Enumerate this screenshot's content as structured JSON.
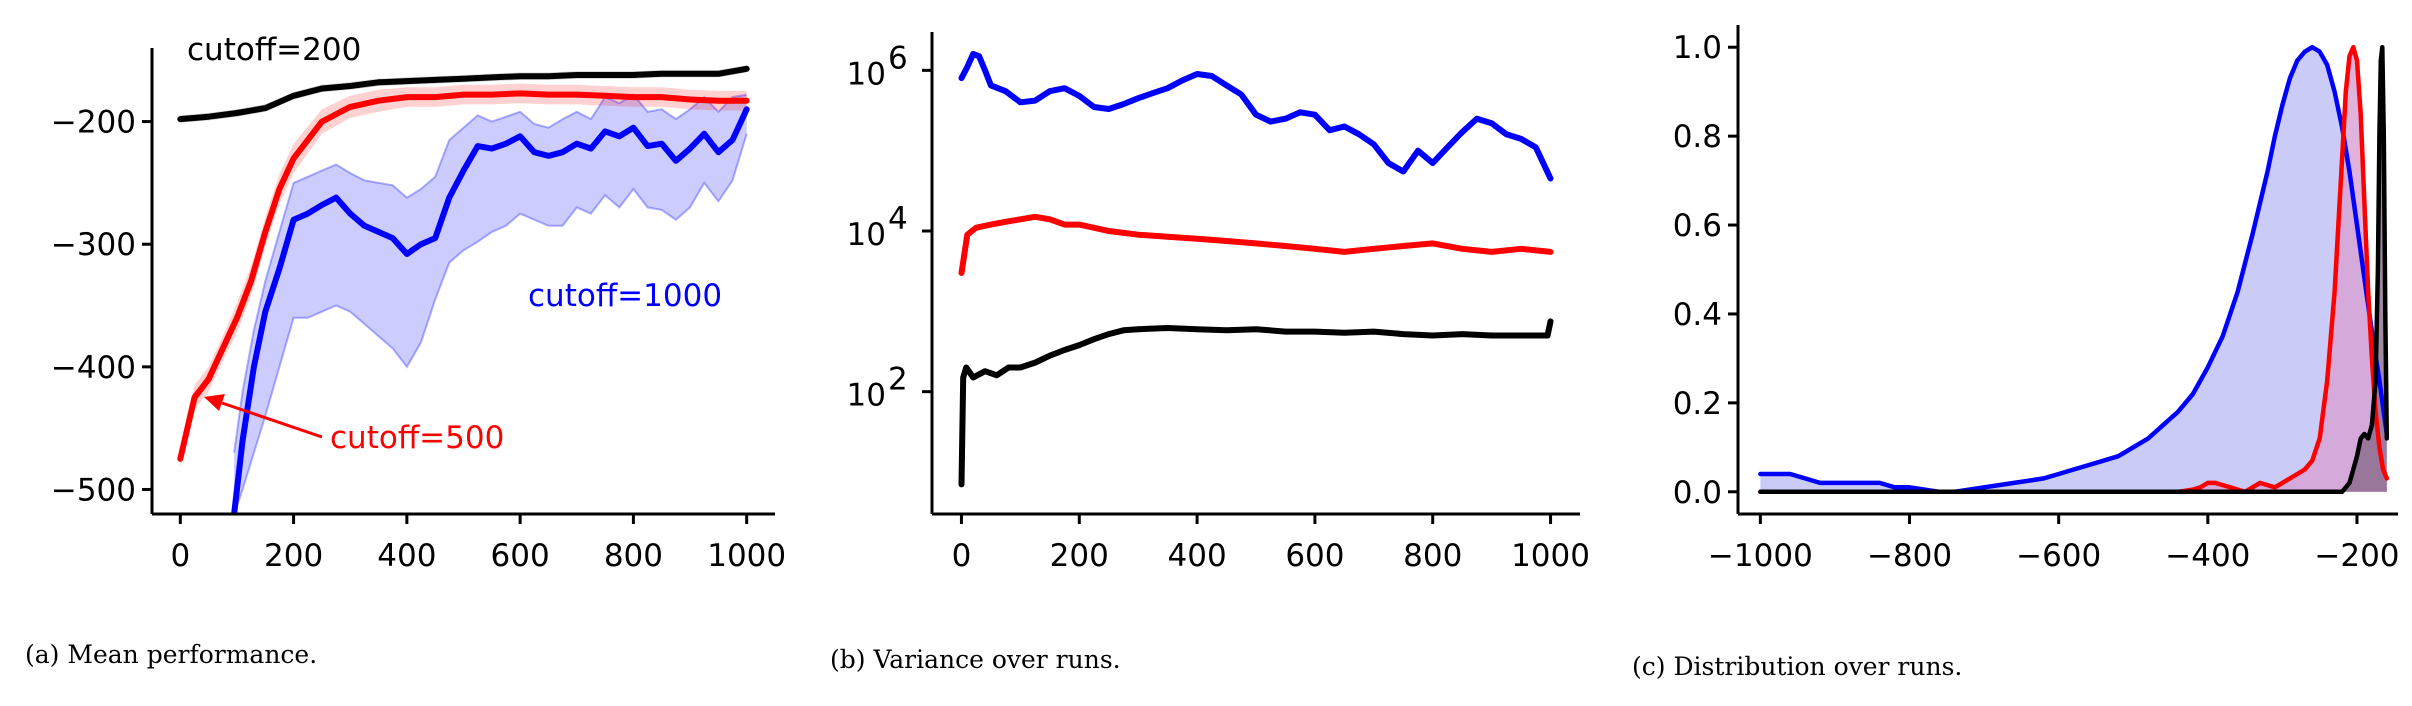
{
  "chart_data": [
    {
      "type": "line",
      "caption": "(a) Mean performance.",
      "xlim": [
        -50,
        1050
      ],
      "ylim": [
        -520,
        -140
      ],
      "xticks": [
        0,
        200,
        400,
        600,
        800,
        1000
      ],
      "xtick_labels": [
        "0",
        "200",
        "400",
        "600",
        "800",
        "1000"
      ],
      "yticks": [
        -500,
        -400,
        -300,
        -200
      ],
      "ytick_labels": [
        "−500",
        "−400",
        "−300",
        "−200"
      ],
      "colors": {
        "cutoff_200": "#000000",
        "cutoff_500": "#ff0000",
        "cutoff_1000": "#0000ff"
      },
      "annotations": {
        "cutoff_200": "cutoff=200",
        "cutoff_500": "cutoff=500",
        "cutoff_1000": "cutoff=1000"
      },
      "series": [
        {
          "key": "cutoff_200",
          "x": [
            0,
            50,
            100,
            150,
            200,
            250,
            300,
            350,
            400,
            450,
            500,
            550,
            600,
            650,
            700,
            750,
            800,
            850,
            900,
            950,
            1000
          ],
          "y": [
            -198,
            -196,
            -193,
            -189,
            -179,
            -173,
            -171,
            -168,
            -167,
            -166,
            -165,
            -164,
            -163,
            -163,
            -162,
            -162,
            -162,
            -161,
            -161,
            -161,
            -157
          ],
          "band": [
            3,
            3,
            3,
            3,
            3,
            3,
            3,
            3,
            3,
            3,
            3,
            3,
            3,
            3,
            3,
            3,
            3,
            3,
            3,
            3,
            3
          ]
        },
        {
          "key": "cutoff_500",
          "x": [
            0,
            25,
            50,
            75,
            100,
            125,
            150,
            175,
            200,
            250,
            300,
            350,
            400,
            450,
            500,
            550,
            600,
            650,
            700,
            750,
            800,
            850,
            900,
            950,
            1000
          ],
          "y": [
            -475,
            -425,
            -410,
            -385,
            -360,
            -330,
            -290,
            -255,
            -230,
            -200,
            -188,
            -183,
            -180,
            -180,
            -178,
            -178,
            -177,
            -178,
            -178,
            -179,
            -180,
            -180,
            -182,
            -183,
            -183
          ],
          "band": [
            8,
            10,
            10,
            10,
            12,
            12,
            12,
            12,
            12,
            10,
            9,
            9,
            8,
            8,
            8,
            8,
            8,
            8,
            8,
            8,
            8,
            8,
            8,
            8,
            8
          ]
        },
        {
          "key": "cutoff_1000",
          "x": [
            95,
            110,
            130,
            150,
            175,
            200,
            225,
            250,
            275,
            300,
            325,
            350,
            375,
            400,
            425,
            450,
            475,
            500,
            525,
            550,
            575,
            600,
            625,
            650,
            675,
            700,
            725,
            750,
            775,
            800,
            825,
            850,
            875,
            900,
            925,
            950,
            975,
            1000
          ],
          "y": [
            -520,
            -460,
            -400,
            -355,
            -320,
            -280,
            -275,
            -268,
            -262,
            -275,
            -285,
            -290,
            -295,
            -308,
            -300,
            -295,
            -262,
            -240,
            -220,
            -222,
            -218,
            -212,
            -225,
            -228,
            -225,
            -218,
            -222,
            -208,
            -212,
            -205,
            -220,
            -218,
            -232,
            -222,
            -210,
            -225,
            -215,
            -190
          ],
          "lower": [
            -520,
            -500,
            -470,
            -440,
            -400,
            -360,
            -360,
            -355,
            -350,
            -355,
            -365,
            -375,
            -385,
            -400,
            -380,
            -345,
            -315,
            -305,
            -298,
            -290,
            -285,
            -275,
            -280,
            -285,
            -285,
            -270,
            -275,
            -260,
            -270,
            -255,
            -270,
            -272,
            -280,
            -270,
            -250,
            -265,
            -248,
            -210
          ],
          "upper": [
            -470,
            -420,
            -370,
            -330,
            -290,
            -250,
            -245,
            -240,
            -235,
            -242,
            -248,
            -250,
            -252,
            -262,
            -255,
            -245,
            -215,
            -205,
            -195,
            -200,
            -196,
            -192,
            -202,
            -205,
            -198,
            -192,
            -198,
            -180,
            -185,
            -178,
            -192,
            -190,
            -198,
            -190,
            -180,
            -192,
            -180,
            -178
          ]
        }
      ]
    },
    {
      "type": "line",
      "caption": "(b) Variance over runs.",
      "yscale": "log",
      "xlim": [
        -50,
        1050
      ],
      "ylim": [
        3,
        3000000
      ],
      "xticks": [
        0,
        200,
        400,
        600,
        800,
        1000
      ],
      "xtick_labels": [
        "0",
        "200",
        "400",
        "600",
        "800",
        "1000"
      ],
      "yticks": [
        100,
        10000,
        1000000
      ],
      "ytick_labels": {
        "base": "10",
        "exponents": [
          "2",
          "4",
          "6"
        ]
      },
      "colors": {
        "cutoff_200": "#000000",
        "cutoff_500": "#ff0000",
        "cutoff_1000": "#0000ff"
      },
      "series": [
        {
          "key": "cutoff_1000",
          "x": [
            0,
            10,
            20,
            30,
            40,
            50,
            75,
            100,
            125,
            150,
            175,
            200,
            225,
            250,
            275,
            300,
            325,
            350,
            375,
            400,
            425,
            450,
            475,
            500,
            525,
            550,
            575,
            600,
            625,
            650,
            675,
            700,
            725,
            750,
            775,
            800,
            825,
            850,
            875,
            900,
            925,
            950,
            975,
            1000
          ],
          "y": [
            800000,
            1100000,
            1600000,
            1500000,
            1000000,
            650000,
            550000,
            400000,
            420000,
            550000,
            600000,
            480000,
            350000,
            330000,
            380000,
            450000,
            520000,
            600000,
            750000,
            900000,
            850000,
            650000,
            500000,
            280000,
            230000,
            250000,
            300000,
            280000,
            180000,
            200000,
            160000,
            120000,
            70000,
            55000,
            100000,
            70000,
            110000,
            170000,
            250000,
            220000,
            160000,
            140000,
            110000,
            45000
          ]
        },
        {
          "key": "cutoff_500",
          "x": [
            0,
            10,
            25,
            50,
            75,
            100,
            125,
            150,
            175,
            200,
            250,
            300,
            350,
            400,
            450,
            500,
            550,
            600,
            650,
            700,
            750,
            800,
            850,
            900,
            950,
            1000
          ],
          "y": [
            3000,
            9000,
            11000,
            12000,
            13000,
            14000,
            15000,
            14000,
            12000,
            12000,
            10000,
            9000,
            8500,
            8000,
            7500,
            7000,
            6500,
            6000,
            5500,
            6000,
            6500,
            7000,
            6000,
            5500,
            6000,
            5500
          ]
        },
        {
          "key": "cutoff_200",
          "x": [
            0,
            3,
            8,
            20,
            40,
            60,
            80,
            100,
            125,
            150,
            175,
            200,
            225,
            250,
            275,
            300,
            350,
            400,
            450,
            500,
            550,
            600,
            650,
            700,
            750,
            800,
            850,
            900,
            950,
            995,
            1000
          ],
          "y": [
            7,
            150,
            200,
            150,
            180,
            160,
            200,
            200,
            230,
            280,
            330,
            380,
            450,
            520,
            580,
            600,
            620,
            600,
            580,
            600,
            560,
            560,
            540,
            560,
            520,
            500,
            520,
            500,
            500,
            500,
            750
          ]
        }
      ]
    },
    {
      "type": "area",
      "caption": "(c) Distribution over runs.",
      "xlim": [
        -1030,
        -145
      ],
      "ylim": [
        -0.05,
        1.05
      ],
      "xticks": [
        -1000,
        -800,
        -600,
        -400,
        -200
      ],
      "xtick_labels": [
        "−1000",
        "−800",
        "−600",
        "−400",
        "−200"
      ],
      "yticks": [
        0,
        0.2,
        0.4,
        0.6,
        0.8,
        1.0
      ],
      "ytick_labels": [
        "0.0",
        "0.2",
        "0.4",
        "0.6",
        "0.8",
        "1.0"
      ],
      "colors": {
        "cutoff_200": "#000000",
        "cutoff_500": "#ff0000",
        "cutoff_1000": "#0000ff",
        "fill_1000": "#c8c8f8",
        "fill_500": "#d7a0d2",
        "fill_200": "#8a6a8a"
      },
      "series": [
        {
          "key": "cutoff_1000",
          "x": [
            -1000,
            -980,
            -960,
            -940,
            -920,
            -900,
            -880,
            -860,
            -840,
            -820,
            -800,
            -780,
            -760,
            -740,
            -720,
            -700,
            -680,
            -660,
            -640,
            -620,
            -600,
            -580,
            -560,
            -540,
            -520,
            -500,
            -480,
            -460,
            -440,
            -420,
            -400,
            -380,
            -360,
            -340,
            -320,
            -310,
            -300,
            -290,
            -280,
            -270,
            -260,
            -250,
            -240,
            -230,
            -220,
            -210,
            -200,
            -190,
            -180,
            -170,
            -160
          ],
          "y": [
            0.04,
            0.04,
            0.04,
            0.03,
            0.02,
            0.02,
            0.02,
            0.02,
            0.02,
            0.01,
            0.01,
            0.005,
            0.0,
            0.0,
            0.005,
            0.01,
            0.015,
            0.02,
            0.025,
            0.03,
            0.04,
            0.05,
            0.06,
            0.07,
            0.08,
            0.1,
            0.12,
            0.15,
            0.18,
            0.22,
            0.28,
            0.35,
            0.45,
            0.58,
            0.72,
            0.8,
            0.87,
            0.93,
            0.97,
            0.99,
            1.0,
            0.99,
            0.96,
            0.9,
            0.82,
            0.72,
            0.6,
            0.48,
            0.36,
            0.25,
            0.13
          ]
        },
        {
          "key": "cutoff_500",
          "x": [
            -1000,
            -800,
            -600,
            -500,
            -480,
            -460,
            -440,
            -420,
            -410,
            -400,
            -390,
            -380,
            -370,
            -360,
            -350,
            -340,
            -330,
            -320,
            -310,
            -300,
            -290,
            -280,
            -270,
            -260,
            -250,
            -240,
            -230,
            -220,
            -215,
            -210,
            -205,
            -200,
            -195,
            -190,
            -185,
            -180,
            -175,
            -170,
            -165,
            -160
          ],
          "y": [
            0.0,
            0.0,
            0.0,
            0.0,
            0.0,
            0.0,
            0.0,
            0.005,
            0.01,
            0.02,
            0.02,
            0.015,
            0.01,
            0.005,
            0.0,
            0.01,
            0.02,
            0.015,
            0.01,
            0.02,
            0.03,
            0.04,
            0.05,
            0.07,
            0.12,
            0.25,
            0.45,
            0.75,
            0.9,
            0.98,
            1.0,
            0.97,
            0.85,
            0.65,
            0.45,
            0.3,
            0.18,
            0.1,
            0.05,
            0.03
          ]
        },
        {
          "key": "cutoff_200",
          "x": [
            -1000,
            -800,
            -600,
            -400,
            -300,
            -220,
            -210,
            -200,
            -195,
            -190,
            -185,
            -180,
            -175,
            -172,
            -170,
            -168,
            -166,
            -164,
            -162,
            -160
          ],
          "y": [
            0.0,
            0.0,
            0.0,
            0.0,
            0.0,
            0.0,
            0.02,
            0.08,
            0.12,
            0.13,
            0.12,
            0.15,
            0.25,
            0.5,
            0.8,
            0.97,
            1.0,
            0.8,
            0.4,
            0.12
          ]
        }
      ]
    }
  ]
}
